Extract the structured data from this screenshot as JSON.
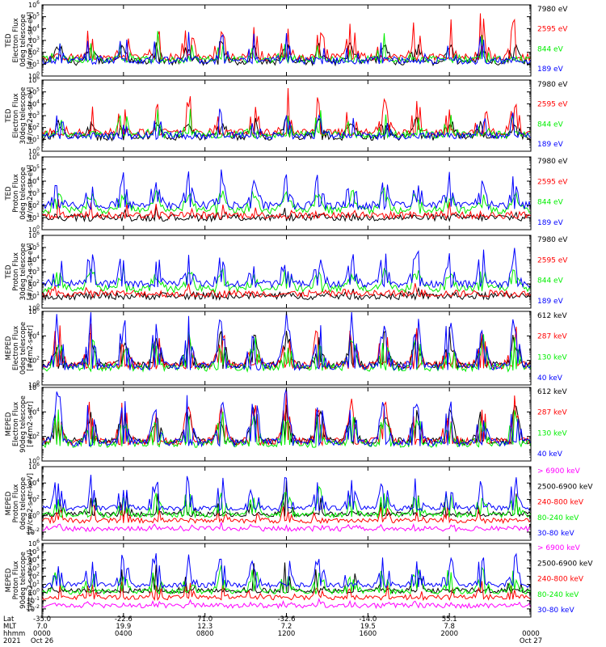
{
  "colors": {
    "black": "#000000",
    "red": "#ff0000",
    "green": "#00ee00",
    "blue": "#0000ff",
    "magenta": "#ff00ff"
  },
  "chart_data": [
    {
      "type": "line",
      "instrument": "TED",
      "quantity": "Electron Flux",
      "telescope": "0deg telescope",
      "units": "[#/cm2-s-str-eV]",
      "ylabel_lines": [
        "TED",
        "Electron Flux",
        "0deg telescope",
        "[#/cm2-s-str-eV]"
      ],
      "ylim": [
        1,
        1000000
      ],
      "yscale": "log",
      "ytick_exponents": [
        0,
        1,
        2,
        3,
        4,
        5,
        6
      ],
      "series": [
        {
          "name": "7980 eV",
          "color": "black"
        },
        {
          "name": "2595 eV",
          "color": "red"
        },
        {
          "name": "844 eV",
          "color": "green"
        },
        {
          "name": "189 eV",
          "color": "blue"
        }
      ]
    },
    {
      "type": "line",
      "instrument": "TED",
      "quantity": "Electron Flux",
      "telescope": "30deg telescope",
      "units": "[#/cm2-s-str-eV]",
      "ylabel_lines": [
        "TED",
        "Electron Flux",
        "30deg telescope",
        "[#/cm2-s-str-eV]"
      ],
      "ylim": [
        1,
        1000000
      ],
      "yscale": "log",
      "ytick_exponents": [
        0,
        1,
        2,
        3,
        4,
        5,
        6
      ],
      "series": [
        {
          "name": "7980 eV",
          "color": "black"
        },
        {
          "name": "2595 eV",
          "color": "red"
        },
        {
          "name": "844 eV",
          "color": "green"
        },
        {
          "name": "189 eV",
          "color": "blue"
        }
      ]
    },
    {
      "type": "line",
      "instrument": "TED",
      "quantity": "Proton Flux",
      "telescope": "0deg telescope",
      "units": "[#/cm2-s-str-eV]",
      "ylabel_lines": [
        "TED",
        "Proton Flux",
        "0deg telescope",
        "[#/cm2-s-str-eV]"
      ],
      "ylim": [
        1,
        1000000
      ],
      "yscale": "log",
      "ytick_exponents": [
        0,
        1,
        2,
        3,
        4,
        5,
        6
      ],
      "series": [
        {
          "name": "7980 eV",
          "color": "black"
        },
        {
          "name": "2595 eV",
          "color": "red"
        },
        {
          "name": "844 eV",
          "color": "green"
        },
        {
          "name": "189 eV",
          "color": "blue"
        }
      ]
    },
    {
      "type": "line",
      "instrument": "TED",
      "quantity": "Proton Flux",
      "telescope": "30deg telescope",
      "units": "[#/cm2-s-str-eV]",
      "ylabel_lines": [
        "TED",
        "Proton Flux",
        "30deg telescope",
        "[#/cm2-s-str-eV]"
      ],
      "ylim": [
        1,
        1000000
      ],
      "yscale": "log",
      "ytick_exponents": [
        0,
        1,
        2,
        3,
        4,
        5,
        6
      ],
      "series": [
        {
          "name": "7980 eV",
          "color": "black"
        },
        {
          "name": "2595 eV",
          "color": "red"
        },
        {
          "name": "844 eV",
          "color": "green"
        },
        {
          "name": "189 eV",
          "color": "blue"
        }
      ]
    },
    {
      "type": "line",
      "instrument": "MEPED",
      "quantity": "Electron Flux",
      "telescope": "0deg telescope",
      "units": "[#/cm2-s-str]",
      "ylabel_lines": [
        "MEPED",
        "Electron Flux",
        "0deg telescope",
        "[#/cm2-s-str]"
      ],
      "ylim": [
        1,
        1000000
      ],
      "yscale": "log",
      "ytick_exponents": [
        0,
        2,
        4,
        6
      ],
      "series": [
        {
          "name": "612 keV",
          "color": "black"
        },
        {
          "name": "287 keV",
          "color": "red"
        },
        {
          "name": "130 keV",
          "color": "green"
        },
        {
          "name": "40 keV",
          "color": "blue"
        }
      ]
    },
    {
      "type": "line",
      "instrument": "MEPED",
      "quantity": "Electron Flux",
      "telescope": "90deg telescope",
      "units": "[#/cm2-s-str]",
      "ylabel_lines": [
        "MEPED",
        "Electron Flux",
        "90deg telescope",
        "[#/cm2-s-str]"
      ],
      "ylim": [
        1,
        1000000
      ],
      "yscale": "log",
      "ytick_exponents": [
        0,
        2,
        4,
        6
      ],
      "series": [
        {
          "name": "612 keV",
          "color": "black"
        },
        {
          "name": "287 keV",
          "color": "red"
        },
        {
          "name": "130 keV",
          "color": "green"
        },
        {
          "name": "40 keV",
          "color": "blue"
        }
      ]
    },
    {
      "type": "line",
      "instrument": "MEPED",
      "quantity": "Proton Flux",
      "telescope": "0deg telescope",
      "units": "[#/cm2-s-str-keV]",
      "ylabel_lines": [
        "MEPED",
        "Proton Flux",
        "0deg telescope",
        "[#/cm2-s-str-keV]"
      ],
      "ylim": [
        0.001,
        1000000
      ],
      "yscale": "log",
      "ytick_exponents": [
        -2,
        0,
        2,
        4,
        6
      ],
      "series": [
        {
          "name": "> 6900 keV",
          "color": "magenta"
        },
        {
          "name": "2500-6900 keV",
          "color": "black"
        },
        {
          "name": "240-800 keV",
          "color": "red"
        },
        {
          "name": "80-240 keV",
          "color": "green"
        },
        {
          "name": "30-80 keV",
          "color": "blue"
        }
      ]
    },
    {
      "type": "line",
      "instrument": "MEPED",
      "quantity": "Proton Flux",
      "telescope": "90deg telescope",
      "units": "[#/cm2-s-str-keV]",
      "ylabel_lines": [
        "MEPED",
        "Proton Flux",
        "90deg telescope",
        "[#/cm2-s-str-keV]"
      ],
      "ylim": [
        0.001,
        1000000
      ],
      "yscale": "log",
      "ytick_exponents": [
        -2,
        -1,
        0,
        1,
        2,
        3,
        4,
        5,
        6
      ],
      "series": [
        {
          "name": "> 6900 keV",
          "color": "magenta"
        },
        {
          "name": "2500-6900 keV",
          "color": "black"
        },
        {
          "name": "240-800 keV",
          "color": "red"
        },
        {
          "name": "80-240 keV",
          "color": "green"
        },
        {
          "name": "30-80 keV",
          "color": "blue"
        }
      ]
    }
  ],
  "xaxis": {
    "row_labels": [
      "Lat",
      "MLT",
      "hhmm",
      "2021"
    ],
    "ticks": [
      {
        "lat": "-35.0",
        "mlt": "7.0",
        "hhmm": "0000",
        "date": "Oct 26"
      },
      {
        "lat": "-22.6",
        "mlt": "19.9",
        "hhmm": "0400",
        "date": ""
      },
      {
        "lat": "71.0",
        "mlt": "12.3",
        "hhmm": "0800",
        "date": ""
      },
      {
        "lat": "-32.6",
        "mlt": "7.2",
        "hhmm": "1200",
        "date": ""
      },
      {
        "lat": "-14.0",
        "mlt": "19.5",
        "hhmm": "1600",
        "date": ""
      },
      {
        "lat": "55.1",
        "mlt": "7.8",
        "hhmm": "2000",
        "date": ""
      },
      {
        "lat": "",
        "mlt": "",
        "hhmm": "0000",
        "date": "Oct 27"
      }
    ]
  }
}
